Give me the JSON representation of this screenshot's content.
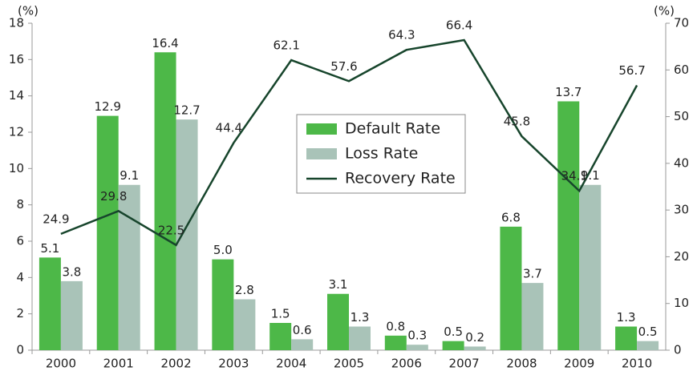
{
  "chart_data": {
    "type": "bar",
    "y_label": "(%)",
    "y2_label": "(%)",
    "categories": [
      "2000",
      "2001",
      "2002",
      "2003",
      "2004",
      "2005",
      "2006",
      "2007",
      "2008",
      "2009",
      "2010"
    ],
    "series": [
      {
        "name": "Default Rate",
        "color": "#4db848",
        "type": "bar",
        "values": [
          5.1,
          12.9,
          16.4,
          5.0,
          1.5,
          3.1,
          0.8,
          0.5,
          6.8,
          13.7,
          1.3
        ],
        "value_labels": [
          "5.1",
          "12.9",
          "16.4",
          "5.0",
          "1.5",
          "3.1",
          "0.8",
          "0.5",
          "6.8",
          "13.7",
          "1.3"
        ]
      },
      {
        "name": "Loss Rate",
        "color": "#a9c3b8",
        "type": "bar",
        "values": [
          3.8,
          9.1,
          12.7,
          2.8,
          0.6,
          1.3,
          0.3,
          0.2,
          3.7,
          9.1,
          0.5
        ],
        "value_labels": [
          "3.8",
          "9.1",
          "12.7",
          "2.8",
          "0.6",
          "1.3",
          "0.3",
          "0.2",
          "3.7",
          "9.1",
          "0.5"
        ]
      },
      {
        "name": "Recovery Rate",
        "color": "#17452c",
        "type": "line",
        "axis": "y2",
        "values": [
          24.9,
          29.8,
          22.5,
          44.4,
          62.1,
          57.6,
          64.3,
          66.4,
          45.8,
          34.1,
          56.7
        ],
        "value_labels": [
          "24.9",
          "29.8",
          "22.5",
          "44.4",
          "62.1",
          "57.6",
          "64.3",
          "66.4",
          "45.8",
          "34.1",
          "56.7"
        ]
      }
    ],
    "ylim": [
      0,
      18
    ],
    "yticks": [
      0,
      2,
      4,
      6,
      8,
      10,
      12,
      14,
      16,
      18
    ],
    "y2lim": [
      0,
      70
    ],
    "y2ticks": [
      0,
      10,
      20,
      30,
      40,
      50,
      60,
      70
    ],
    "grid": false,
    "legend": "center"
  }
}
